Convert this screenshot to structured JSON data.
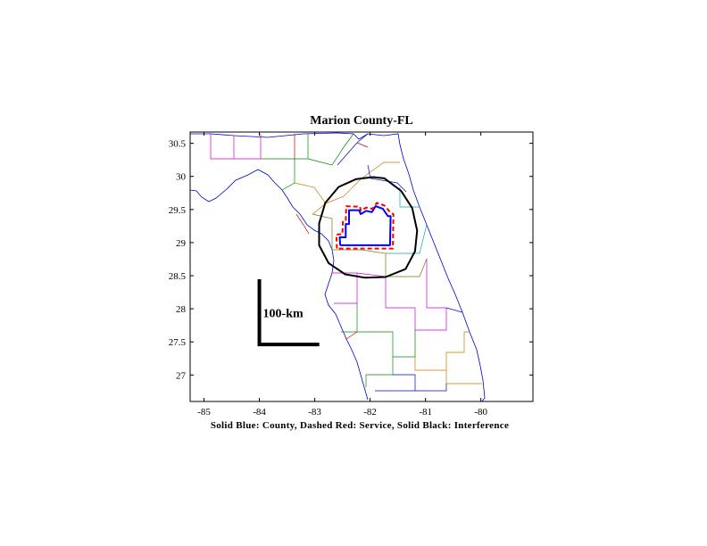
{
  "chart_data": {
    "type": "map",
    "title": "Marion County-FL",
    "caption": "Solid Blue: County, Dashed Red: Service, Solid Black: Interference",
    "xlim": [
      -85.25,
      -79.06
    ],
    "ylim": [
      26.6,
      30.67
    ],
    "xticks": [
      -85,
      -84,
      -83,
      -82,
      -81,
      -80
    ],
    "yticks": [
      27,
      27.5,
      28,
      28.5,
      29,
      29.5,
      30,
      30.5
    ],
    "xtick_labels": [
      "-85",
      "-84",
      "-83",
      "-82",
      "-81",
      "-80"
    ],
    "ytick_labels": [
      "27",
      "27.5",
      "28",
      "28.5",
      "29",
      "29.5",
      "30",
      "30.5"
    ],
    "scale_bar": {
      "label": "100-km",
      "x0": -84.0,
      "y0": 27.46,
      "x1": -82.95,
      "y1": 28.42
    },
    "series": [
      {
        "role": "county",
        "style": "solid",
        "color": "#0000ff",
        "points": [
          [
            -82.54,
            28.96
          ],
          [
            -82.55,
            29.08
          ],
          [
            -82.44,
            29.08
          ],
          [
            -82.44,
            29.28
          ],
          [
            -82.38,
            29.28
          ],
          [
            -82.38,
            29.49
          ],
          [
            -82.2,
            29.49
          ],
          [
            -82.17,
            29.43
          ],
          [
            -82.07,
            29.48
          ],
          [
            -81.97,
            29.46
          ],
          [
            -81.9,
            29.55
          ],
          [
            -81.77,
            29.51
          ],
          [
            -81.68,
            29.4
          ],
          [
            -81.63,
            29.4
          ],
          [
            -81.64,
            28.96
          ],
          [
            -82.54,
            28.96
          ]
        ]
      },
      {
        "role": "service",
        "style": "dashed",
        "color": "#ff0000",
        "points": [
          [
            -82.6,
            28.91
          ],
          [
            -82.61,
            29.12
          ],
          [
            -82.5,
            29.13
          ],
          [
            -82.49,
            29.33
          ],
          [
            -82.44,
            29.34
          ],
          [
            -82.43,
            29.55
          ],
          [
            -82.18,
            29.54
          ],
          [
            -82.17,
            29.48
          ],
          [
            -82.07,
            29.53
          ],
          [
            -81.96,
            29.51
          ],
          [
            -81.88,
            29.6
          ],
          [
            -81.74,
            29.56
          ],
          [
            -81.63,
            29.45
          ],
          [
            -81.58,
            29.43
          ],
          [
            -81.59,
            28.91
          ],
          [
            -82.6,
            28.91
          ]
        ]
      },
      {
        "role": "interference",
        "style": "solid",
        "color": "#000000",
        "points": [
          [
            -81.72,
            28.48
          ],
          [
            -81.36,
            28.6
          ],
          [
            -81.19,
            28.87
          ],
          [
            -81.15,
            29.18
          ],
          [
            -81.24,
            29.52
          ],
          [
            -81.44,
            29.78
          ],
          [
            -81.74,
            29.97
          ],
          [
            -81.95,
            29.99
          ],
          [
            -82.25,
            29.96
          ],
          [
            -82.57,
            29.84
          ],
          [
            -82.81,
            29.6
          ],
          [
            -82.92,
            29.29
          ],
          [
            -82.92,
            28.96
          ],
          [
            -82.75,
            28.69
          ],
          [
            -82.45,
            28.52
          ],
          [
            -82.1,
            28.47
          ],
          [
            -81.72,
            28.48
          ]
        ]
      }
    ],
    "background_layers": "state coastline and county boundary lines",
    "colors": {
      "county": "#0000ff",
      "service": "#ff0000",
      "interference": "#000000",
      "axes": "#000000",
      "boundaries": [
        "#0000cc",
        "#cc0000",
        "#008800",
        "#cc00cc",
        "#cc7700",
        "#00aaaa",
        "#777700"
      ]
    }
  }
}
